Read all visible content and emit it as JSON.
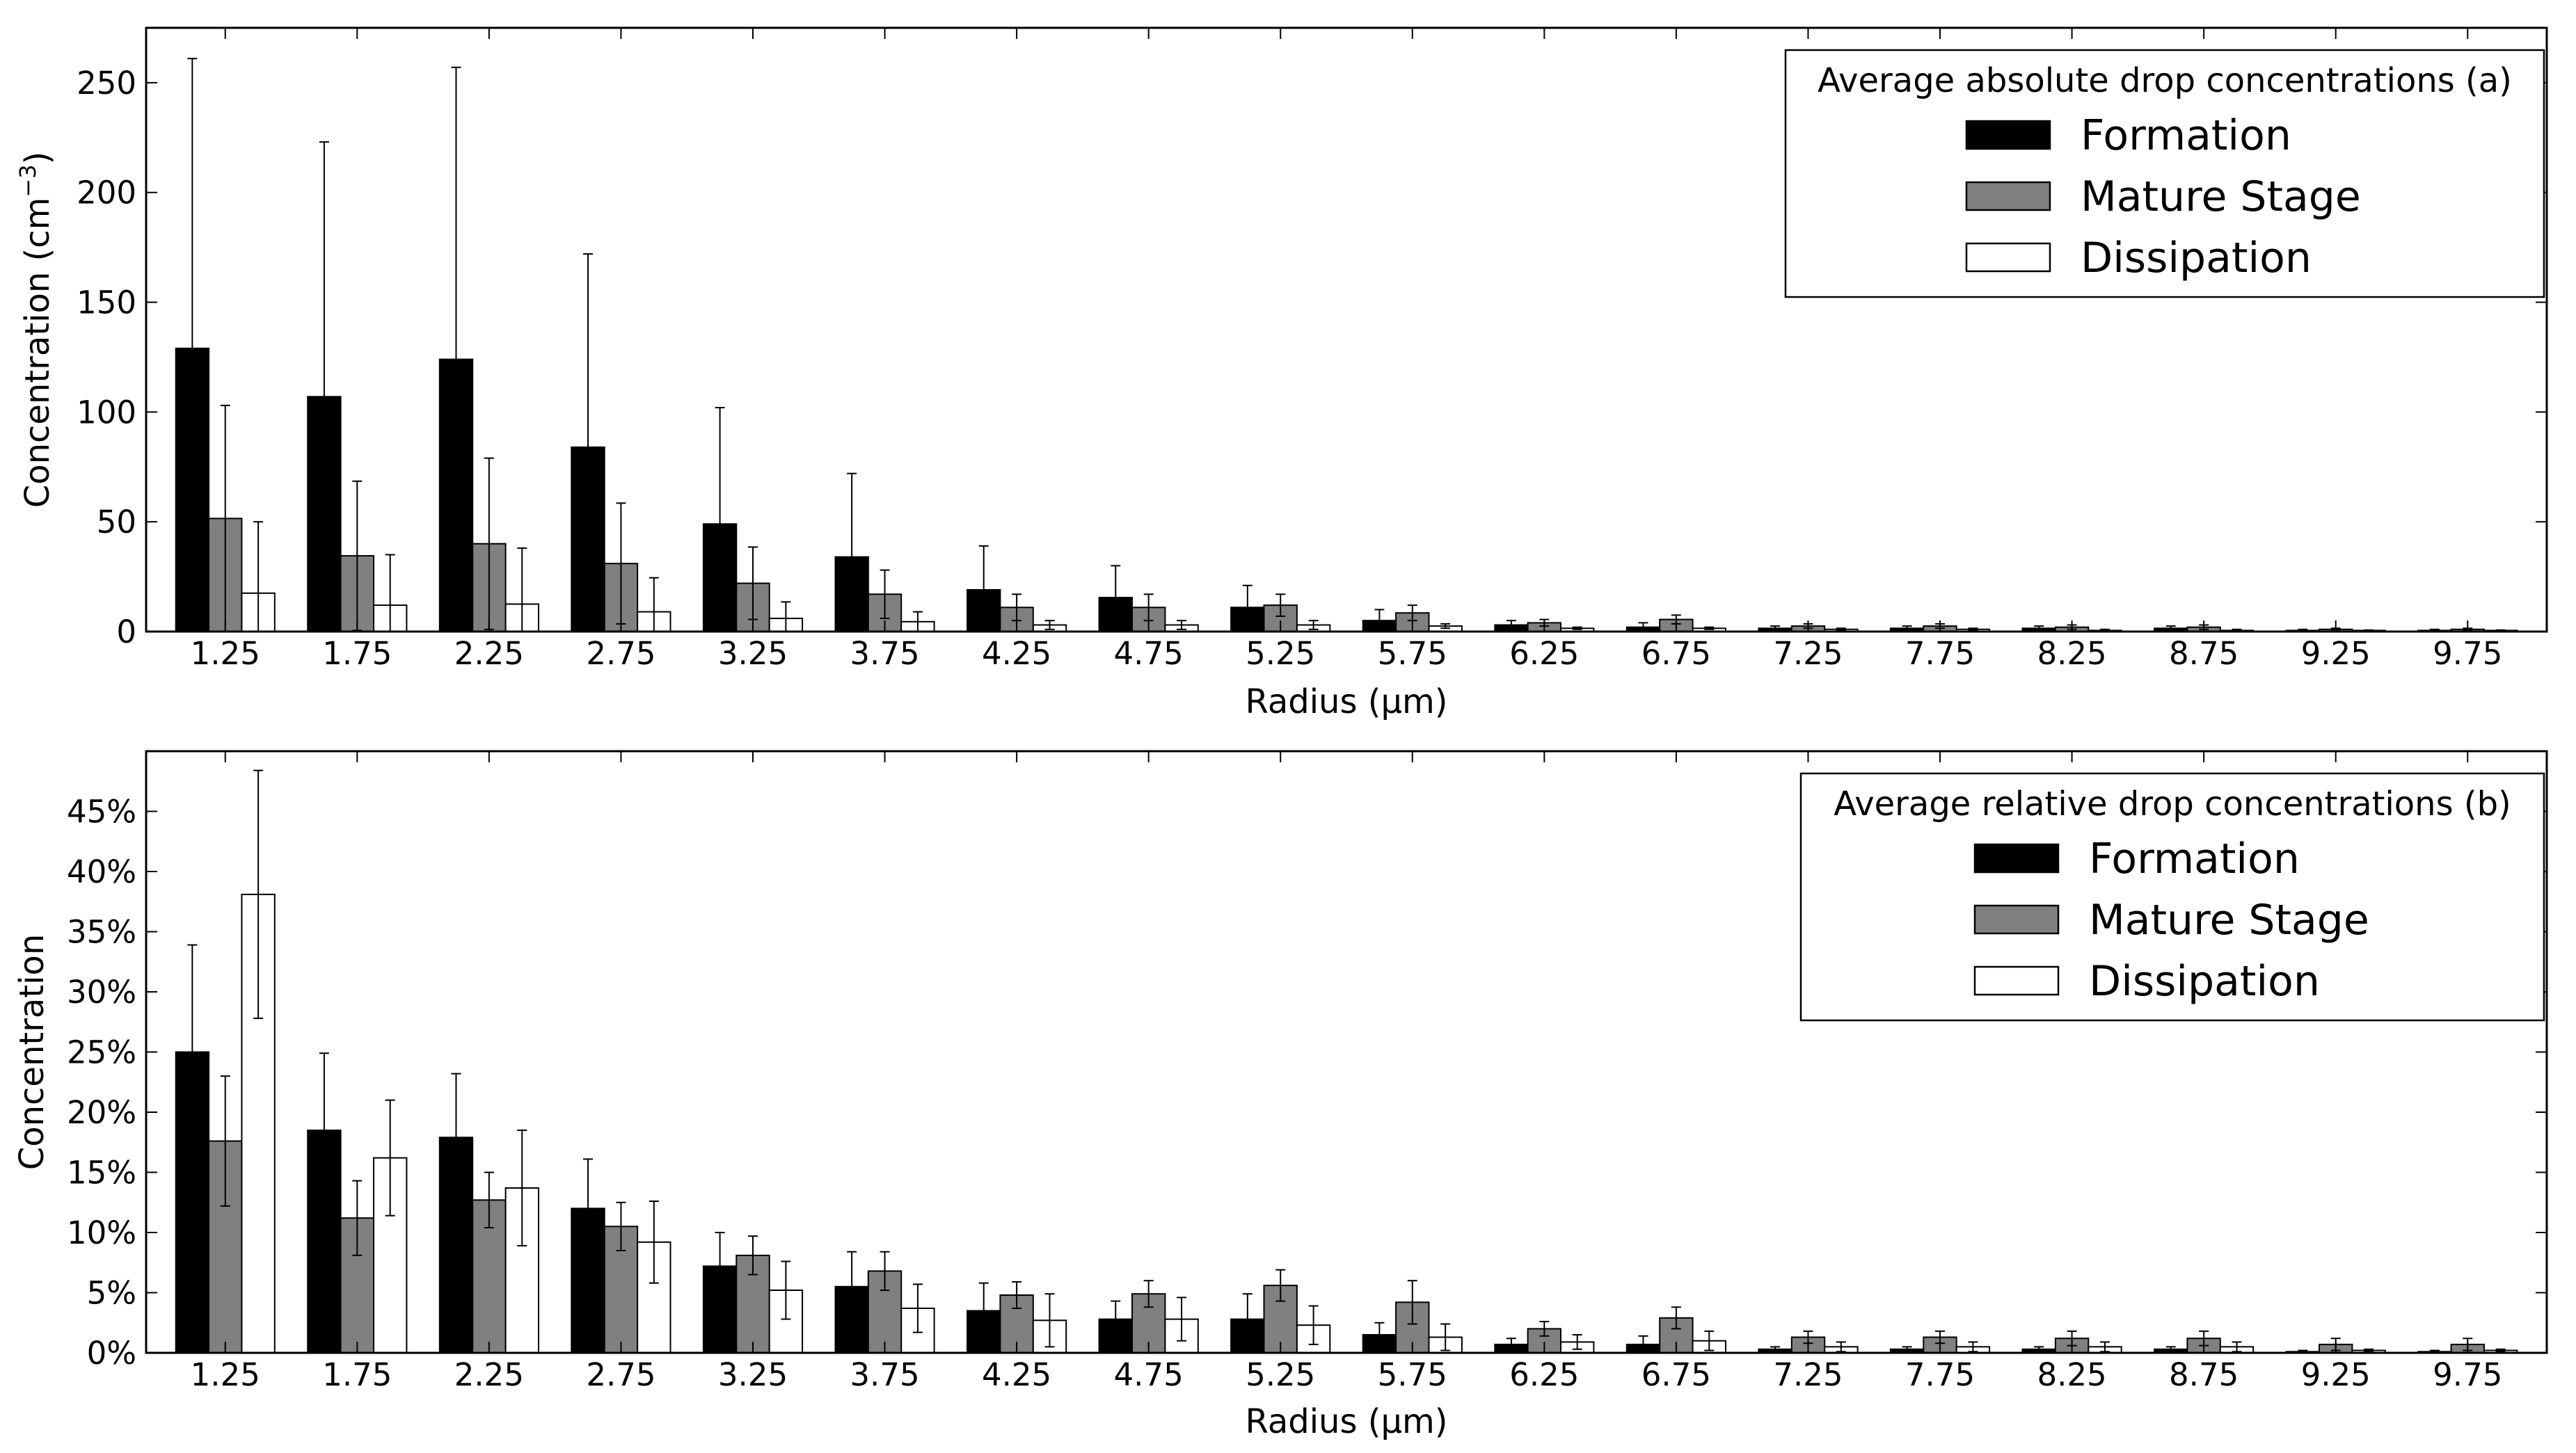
{
  "colors": {
    "formation": "#000000",
    "mature": "#808080",
    "dissipation": "#ffffff",
    "axis": "#000000"
  },
  "chart_data": [
    {
      "type": "bar",
      "id": "a",
      "legend_title": "Average absolute drop concentrations (a)",
      "legend_position": "top-right",
      "xlabel": "Radius (μm)",
      "ylabel_text": "Concentration (cm",
      "ylabel_unit_sup": "−3",
      "ylabel_close": ")",
      "ylim": [
        0,
        275
      ],
      "yticks": [
        0,
        50,
        100,
        150,
        200,
        250
      ],
      "ytick_labels": [
        "0",
        "50",
        "100",
        "150",
        "200",
        "250"
      ],
      "grid": false,
      "categories": [
        "1.25",
        "1.75",
        "2.25",
        "2.75",
        "3.25",
        "3.75",
        "4.25",
        "4.75",
        "5.25",
        "5.75",
        "6.25",
        "6.75",
        "7.25",
        "7.75",
        "8.25",
        "8.75",
        "9.25",
        "9.75"
      ],
      "series": [
        {
          "name": "Formation",
          "color": "#000000",
          "values": [
            129,
            107,
            124,
            84,
            49,
            34,
            19,
            15.5,
            11,
            5,
            3,
            2,
            1.5,
            1.5,
            1.5,
            1.5,
            0.5,
            0.5
          ],
          "errors": [
            132,
            116,
            133,
            88,
            53,
            38,
            20,
            14.5,
            10,
            5,
            2,
            2,
            1,
            1,
            1,
            1,
            0.5,
            0.5
          ]
        },
        {
          "name": "Mature Stage",
          "color": "#808080",
          "values": [
            51.5,
            34.5,
            40,
            31,
            22,
            17,
            11,
            11,
            12,
            8.5,
            4,
            5.5,
            2.5,
            2.5,
            2,
            2,
            1,
            1
          ],
          "errors": [
            51.5,
            34,
            39,
            27.5,
            16.5,
            11,
            6,
            6,
            5,
            3.5,
            1.5,
            2,
            1,
            1,
            1,
            1,
            0.5,
            0.5
          ]
        },
        {
          "name": "Dissipation",
          "color": "#ffffff",
          "values": [
            17.5,
            12,
            12.5,
            9,
            6,
            4.5,
            3,
            3,
            3,
            2.5,
            1.5,
            1.5,
            1,
            1,
            0.5,
            0.5,
            0.5,
            0.5
          ],
          "errors": [
            32.5,
            23,
            25.5,
            15.5,
            7.5,
            4.5,
            2,
            2,
            2,
            1,
            0.5,
            0.5,
            0.5,
            0.5,
            0.5,
            0.5,
            0.2,
            0.2
          ]
        }
      ]
    },
    {
      "type": "bar",
      "id": "b",
      "legend_title": "Average relative drop concentrations (b)",
      "legend_position": "top-right",
      "xlabel": "Radius (μm)",
      "ylabel": "Concentration",
      "ylim": [
        0,
        50
      ],
      "yticks": [
        0,
        5,
        10,
        15,
        20,
        25,
        30,
        35,
        40,
        45
      ],
      "ytick_labels": [
        "0%",
        "5%",
        "10%",
        "15%",
        "20%",
        "25%",
        "30%",
        "35%",
        "40%",
        "45%"
      ],
      "grid": false,
      "categories": [
        "1.25",
        "1.75",
        "2.25",
        "2.75",
        "3.25",
        "3.75",
        "4.25",
        "4.75",
        "5.25",
        "5.75",
        "6.25",
        "6.75",
        "7.25",
        "7.75",
        "8.25",
        "8.75",
        "9.25",
        "9.75"
      ],
      "series": [
        {
          "name": "Formation",
          "color": "#000000",
          "values": [
            25,
            18.5,
            17.9,
            12,
            7.2,
            5.5,
            3.5,
            2.8,
            2.8,
            1.5,
            0.7,
            0.7,
            0.3,
            0.3,
            0.3,
            0.3,
            0.1,
            0.1
          ],
          "errors": [
            8.9,
            6.4,
            5.3,
            4.1,
            2.8,
            2.9,
            2.3,
            1.5,
            2.1,
            1.0,
            0.5,
            0.7,
            0.2,
            0.2,
            0.2,
            0.2,
            0.1,
            0.1
          ]
        },
        {
          "name": "Mature Stage",
          "color": "#808080",
          "values": [
            17.6,
            11.2,
            12.7,
            10.5,
            8.1,
            6.8,
            4.8,
            4.9,
            5.6,
            4.2,
            2.0,
            2.9,
            1.3,
            1.3,
            1.2,
            1.2,
            0.7,
            0.7
          ],
          "errors": [
            5.4,
            3.1,
            2.3,
            2.0,
            1.6,
            1.6,
            1.1,
            1.1,
            1.3,
            1.8,
            0.6,
            0.9,
            0.5,
            0.5,
            0.6,
            0.6,
            0.5,
            0.5
          ]
        },
        {
          "name": "Dissipation",
          "color": "#ffffff",
          "values": [
            38.1,
            16.2,
            13.7,
            9.2,
            5.2,
            3.7,
            2.7,
            2.8,
            2.3,
            1.3,
            0.9,
            1.0,
            0.5,
            0.5,
            0.5,
            0.5,
            0.2,
            0.2
          ],
          "errors": [
            10.3,
            4.8,
            4.8,
            3.4,
            2.4,
            2.0,
            2.2,
            1.8,
            1.6,
            1.1,
            0.6,
            0.8,
            0.4,
            0.4,
            0.4,
            0.4,
            0.1,
            0.1
          ]
        }
      ]
    }
  ]
}
